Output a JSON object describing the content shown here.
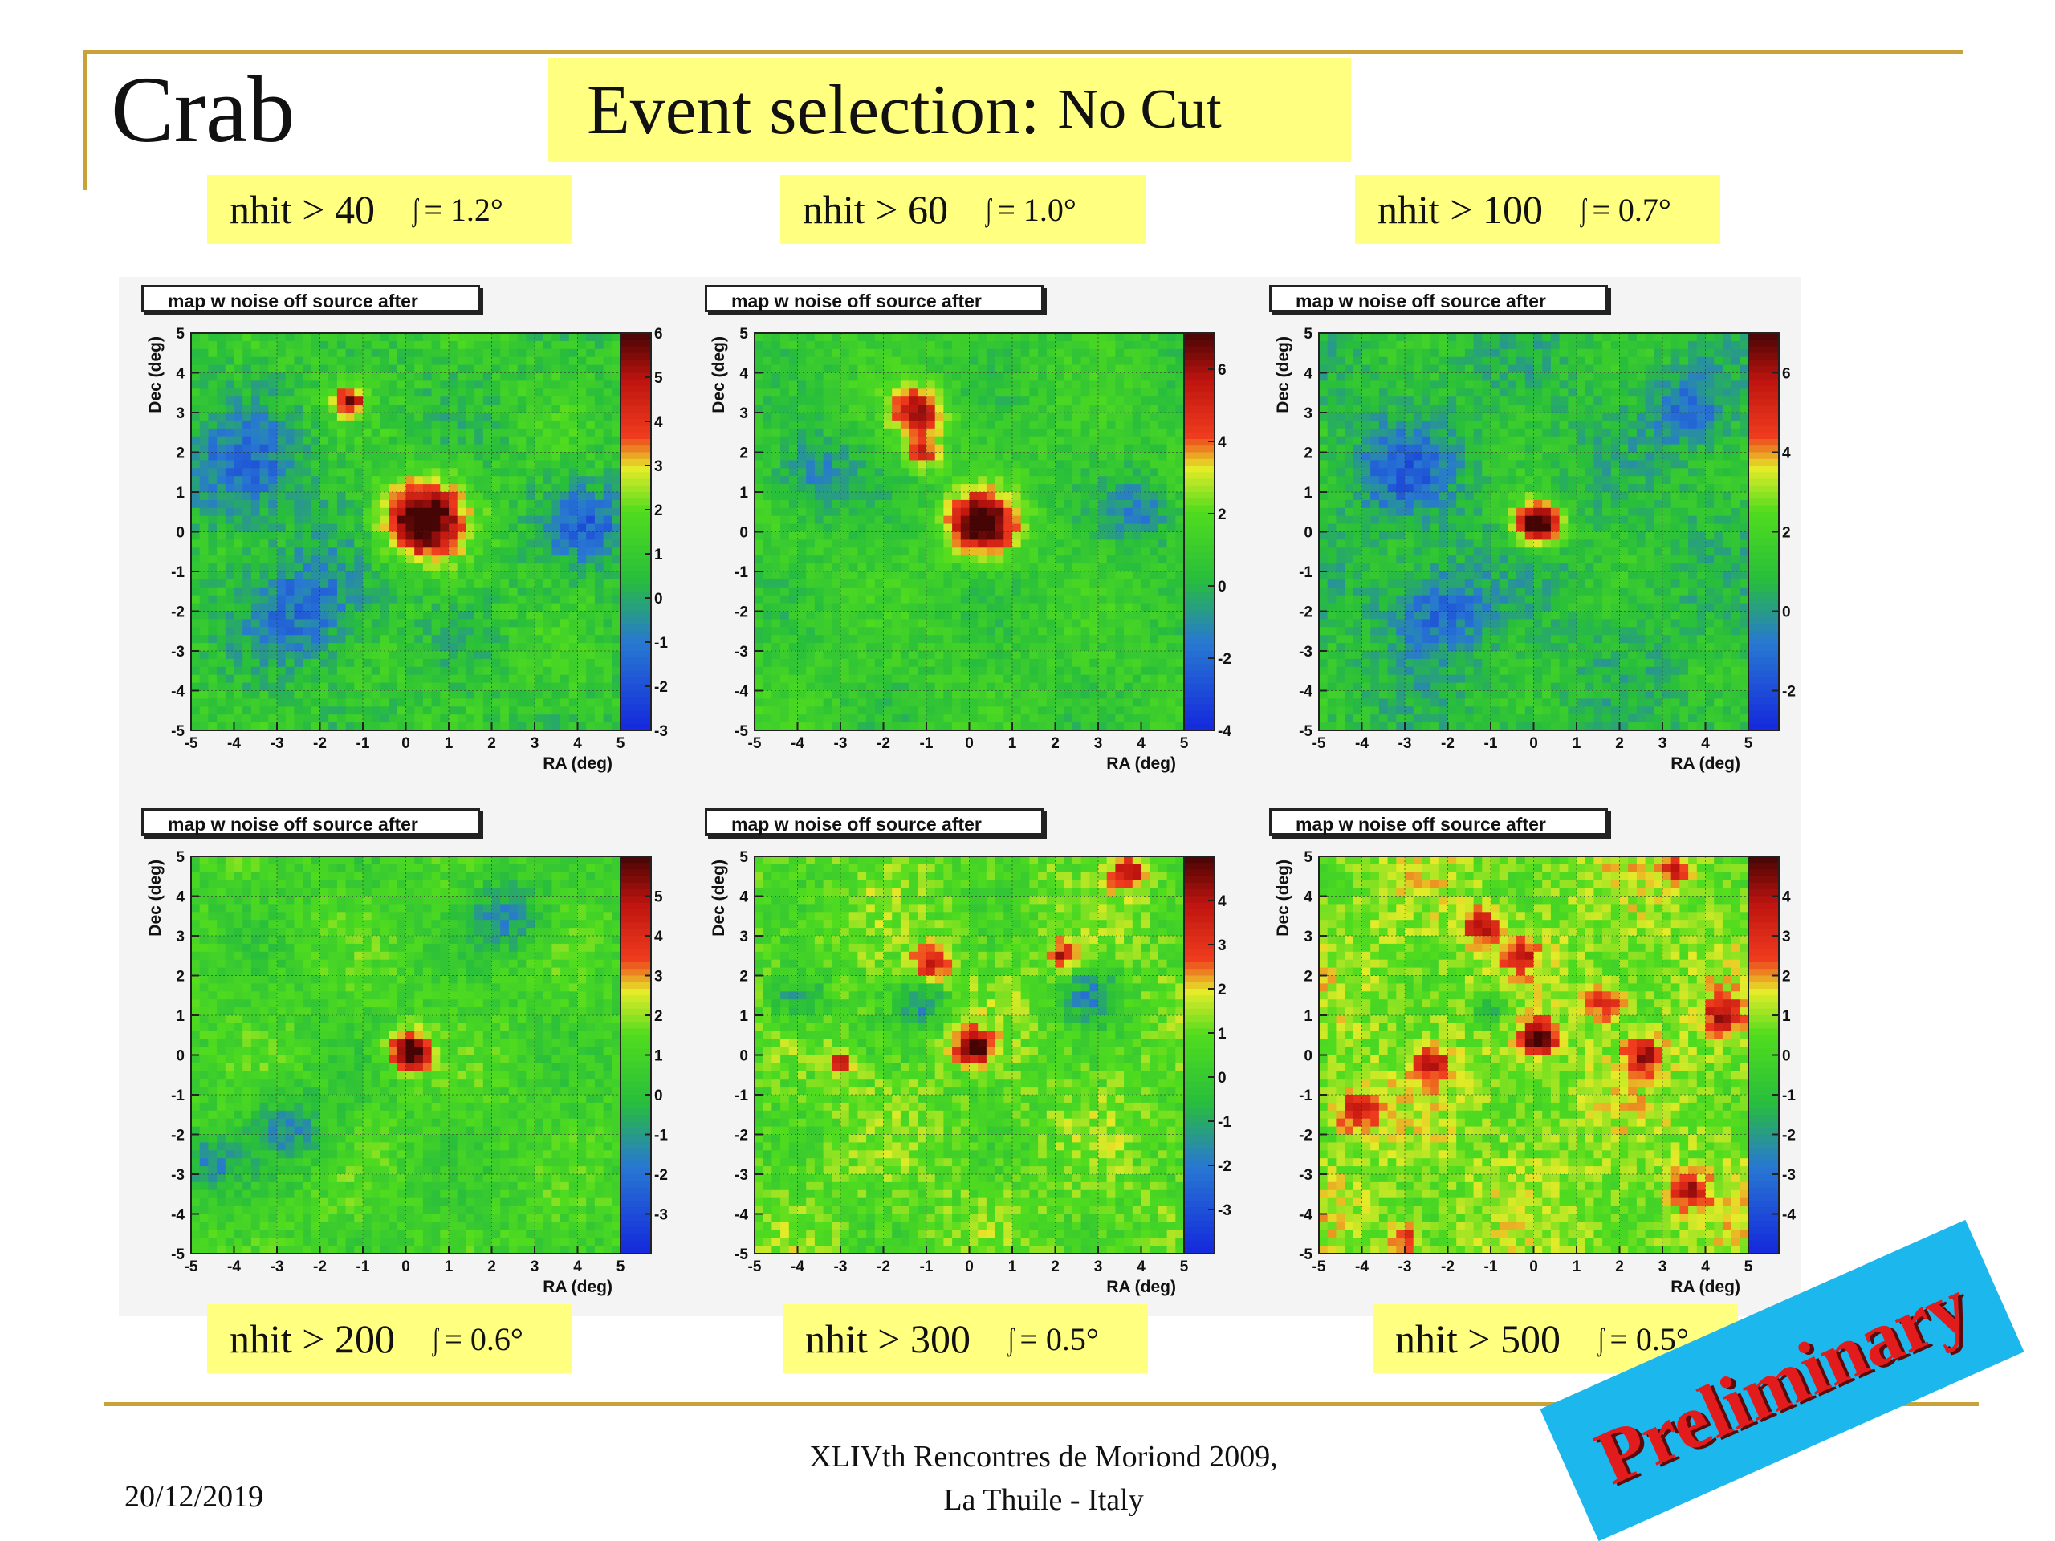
{
  "slide": {
    "title": "Crab",
    "banner_main": "Event selection:",
    "banner_sub": "No Cut",
    "footer_date": "20/12/2019",
    "footer_conf_line1": "XLIVth Rencontres de Moriond 2009,",
    "footer_conf_line2": "La Thuile - Italy",
    "stamp": "Preliminary"
  },
  "labels": [
    {
      "cut": "nhit > 40",
      "res": "= 1.2°"
    },
    {
      "cut": "nhit > 60",
      "res": "= 1.0°"
    },
    {
      "cut": "nhit > 100",
      "res": "= 0.7°"
    },
    {
      "cut": "nhit > 200",
      "res": "= 0.6°"
    },
    {
      "cut": "nhit > 300",
      "res": "= 0.5°"
    },
    {
      "cut": "nhit > 500",
      "res": "= 0.5°"
    }
  ],
  "colors": {
    "label_bg": "#ffff80",
    "rule": "#c9a23a",
    "stamp_bg": "#1cb7ec",
    "stamp_text": "#e21c1c"
  },
  "chart_data": [
    {
      "type": "heatmap",
      "title": "map w noise off source after",
      "xlabel": "RA (deg)",
      "ylabel": "Dec (deg)",
      "xlim": [
        -5,
        5
      ],
      "ylim": [
        -5,
        5
      ],
      "grid": true,
      "colorbar_ticks": [
        -3,
        -2,
        -1,
        0,
        1,
        2,
        3,
        4,
        5,
        6
      ],
      "zlim": [
        -3,
        6
      ],
      "source": {
        "x": 0.4,
        "y": 0.3,
        "sigma": 1.2,
        "peak": 6
      },
      "hotspots": [
        {
          "x": -1.3,
          "y": 3.3,
          "sigma": 0.25,
          "peak": 4
        }
      ],
      "coldspots": [
        {
          "x": -3.8,
          "y": 1.5,
          "sigma": 1.0
        },
        {
          "x": -2.3,
          "y": -1.9,
          "sigma": 1.0
        },
        {
          "x": 4.3,
          "y": 0.2,
          "sigma": 0.7
        }
      ]
    },
    {
      "type": "heatmap",
      "title": "map w noise off source after",
      "xlabel": "RA (deg)",
      "ylabel": "Dec (deg)",
      "xlim": [
        -5,
        5
      ],
      "ylim": [
        -5,
        5
      ],
      "grid": true,
      "colorbar_ticks": [
        -4,
        -2,
        0,
        2,
        4,
        6
      ],
      "zlim": [
        -4,
        7
      ],
      "source": {
        "x": 0.3,
        "y": 0.2,
        "sigma": 1.0,
        "peak": 7
      },
      "hotspots": [
        {
          "x": -1.2,
          "y": 3.0,
          "sigma": 0.45,
          "peak": 5
        },
        {
          "x": -1.1,
          "y": 2.0,
          "sigma": 0.3,
          "peak": 4
        }
      ],
      "coldspots": [
        {
          "x": -3.6,
          "y": 1.4,
          "sigma": 0.7
        },
        {
          "x": 4.0,
          "y": 0.5,
          "sigma": 0.6
        }
      ]
    },
    {
      "type": "heatmap",
      "title": "map w noise off source after",
      "xlabel": "RA (deg)",
      "ylabel": "Dec (deg)",
      "xlim": [
        -5,
        5
      ],
      "ylim": [
        -5,
        5
      ],
      "grid": true,
      "colorbar_ticks": [
        -2,
        0,
        2,
        4,
        6
      ],
      "zlim": [
        -3,
        7
      ],
      "source": {
        "x": 0.1,
        "y": 0.2,
        "sigma": 0.7,
        "peak": 7
      },
      "hotspots": [],
      "coldspots": [
        {
          "x": -3.0,
          "y": 1.5,
          "sigma": 0.8
        },
        {
          "x": -2.2,
          "y": -2.0,
          "sigma": 0.8
        },
        {
          "x": 3.6,
          "y": 3.0,
          "sigma": 0.6
        }
      ]
    },
    {
      "type": "heatmap",
      "title": "map w noise off source after",
      "xlabel": "RA (deg)",
      "ylabel": "Dec (deg)",
      "xlim": [
        -5,
        5
      ],
      "ylim": [
        -5,
        5
      ],
      "grid": true,
      "colorbar_ticks": [
        -3,
        -2,
        -1,
        0,
        1,
        2,
        3,
        4,
        5
      ],
      "zlim": [
        -4,
        6
      ],
      "source": {
        "x": 0.1,
        "y": 0.1,
        "sigma": 0.6,
        "peak": 6
      },
      "hotspots": [],
      "coldspots": [
        {
          "x": -2.7,
          "y": -1.8,
          "sigma": 0.6
        },
        {
          "x": -4.6,
          "y": -2.7,
          "sigma": 0.5
        },
        {
          "x": 2.4,
          "y": 3.5,
          "sigma": 0.6
        }
      ]
    },
    {
      "type": "heatmap",
      "title": "map w noise off source after",
      "xlabel": "RA (deg)",
      "ylabel": "Dec (deg)",
      "xlim": [
        -5,
        5
      ],
      "ylim": [
        -5,
        5
      ],
      "grid": true,
      "colorbar_ticks": [
        -3,
        -2,
        -1,
        0,
        1,
        2,
        3,
        4
      ],
      "zlim": [
        -4,
        5
      ],
      "source": {
        "x": 0.1,
        "y": 0.2,
        "sigma": 0.5,
        "peak": 5
      },
      "hotspots": [
        {
          "x": 3.7,
          "y": 4.6,
          "sigma": 0.3,
          "peak": 3
        },
        {
          "x": -0.9,
          "y": 2.3,
          "sigma": 0.3,
          "peak": 3
        },
        {
          "x": 2.2,
          "y": 2.5,
          "sigma": 0.25,
          "peak": 3
        },
        {
          "x": -3.0,
          "y": -0.2,
          "sigma": 0.25,
          "peak": 2.5
        }
      ],
      "coldspots": [
        {
          "x": -4.0,
          "y": 1.4,
          "sigma": 0.5
        },
        {
          "x": -1.1,
          "y": 1.3,
          "sigma": 0.4
        },
        {
          "x": 2.8,
          "y": 1.5,
          "sigma": 0.5
        }
      ]
    },
    {
      "type": "heatmap",
      "title": "map w noise off source after",
      "xlabel": "RA (deg)",
      "ylabel": "Dec (deg)",
      "xlim": [
        -5,
        5
      ],
      "ylim": [
        -5,
        5
      ],
      "grid": true,
      "colorbar_ticks": [
        -4,
        -3,
        -2,
        -1,
        0,
        1,
        2,
        3,
        4
      ],
      "zlim": [
        -5,
        5
      ],
      "source": {
        "x": 0.1,
        "y": 0.4,
        "sigma": 0.5,
        "peak": 5
      },
      "hotspots": [
        {
          "x": -1.2,
          "y": 3.2,
          "sigma": 0.3,
          "peak": 3
        },
        {
          "x": -0.3,
          "y": 2.5,
          "sigma": 0.25,
          "peak": 3
        },
        {
          "x": 1.7,
          "y": 1.3,
          "sigma": 0.3,
          "peak": 3
        },
        {
          "x": 4.4,
          "y": 1.0,
          "sigma": 0.3,
          "peak": 3
        },
        {
          "x": 2.6,
          "y": 0.0,
          "sigma": 0.3,
          "peak": 3
        },
        {
          "x": -2.4,
          "y": -0.2,
          "sigma": 0.3,
          "peak": 3
        },
        {
          "x": -4.1,
          "y": -1.4,
          "sigma": 0.35,
          "peak": 3
        },
        {
          "x": 3.6,
          "y": -3.4,
          "sigma": 0.3,
          "peak": 3
        },
        {
          "x": 3.3,
          "y": 4.7,
          "sigma": 0.25,
          "peak": 2.5
        },
        {
          "x": -3.0,
          "y": -4.6,
          "sigma": 0.25,
          "peak": 2.5
        }
      ],
      "coldspots": [
        {
          "x": -1.0,
          "y": 1.2,
          "sigma": 0.35
        }
      ]
    }
  ]
}
